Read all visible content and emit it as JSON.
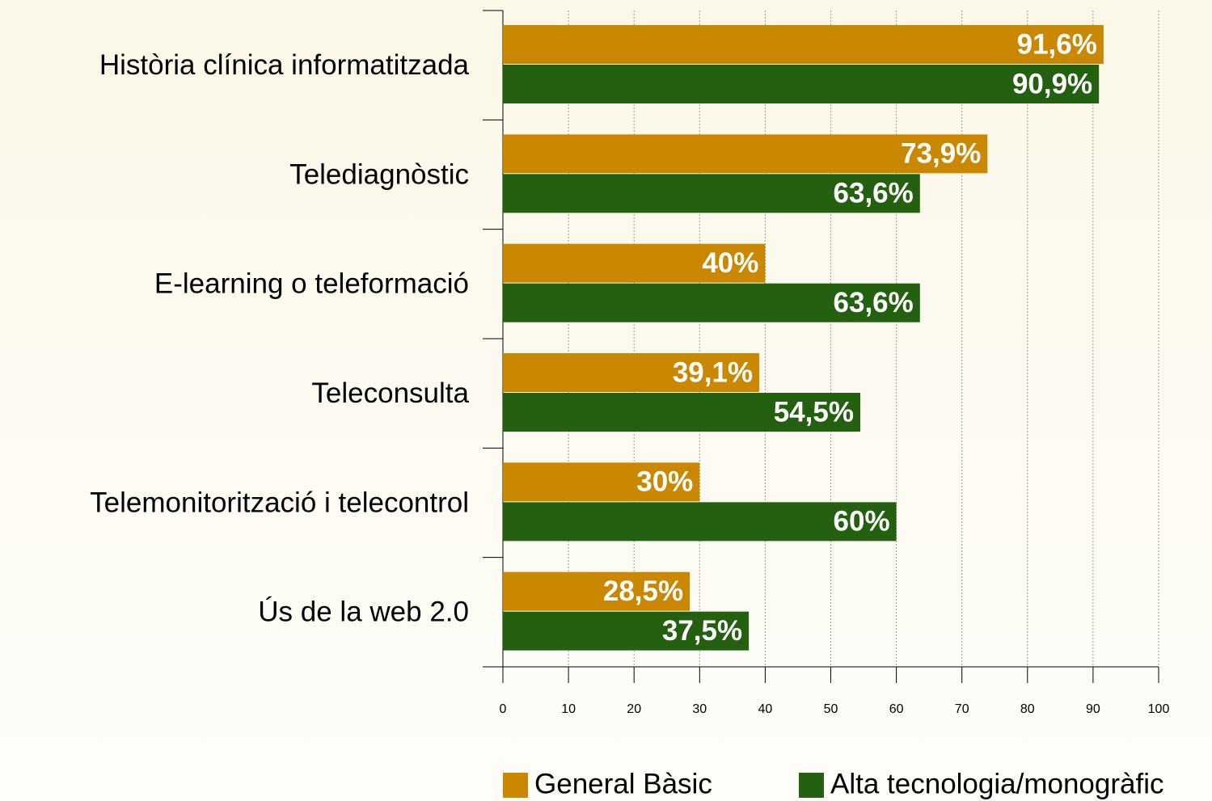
{
  "chart_data": {
    "type": "bar",
    "orientation": "horizontal",
    "categories": [
      "Història clínica informatitzada",
      "Telediagnòstic",
      "E-learning o teleformació",
      "Teleconsulta",
      "Telemonitorització i telecontrol",
      "Ús de la web 2.0"
    ],
    "series": [
      {
        "name": "General Bàsic",
        "color": "#c98800",
        "values": [
          91.6,
          73.9,
          40,
          39.1,
          30,
          28.5
        ],
        "value_labels": [
          "91,6%",
          "73,9%",
          "40%",
          "39,1%",
          "30%",
          "28,5%"
        ]
      },
      {
        "name": "Alta tecnologia/monogràfic",
        "color": "#236010",
        "values": [
          90.9,
          63.6,
          63.6,
          54.5,
          60,
          37.5
        ],
        "value_labels": [
          "90,9%",
          "63,6%",
          "63,6%",
          "54,5%",
          "60%",
          "37,5%"
        ]
      }
    ],
    "xlim": [
      0,
      100
    ],
    "xticks": [
      0,
      10,
      20,
      30,
      40,
      50,
      60,
      70,
      80,
      90,
      100
    ],
    "grid": true
  }
}
